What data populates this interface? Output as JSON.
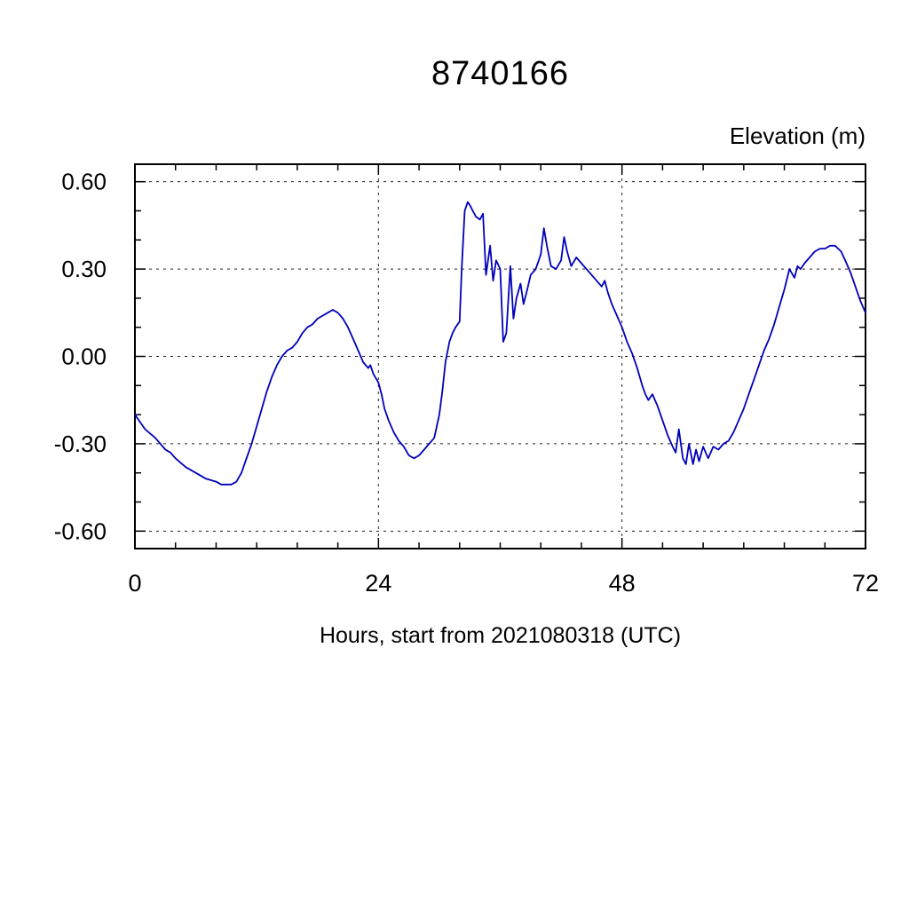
{
  "chart_data": {
    "type": "line",
    "title": "8740166",
    "xlabel": "Hours, start from 2021080318 (UTC)",
    "ylabel": "Elevation (m)",
    "xlim": [
      0,
      72
    ],
    "ylim": [
      -0.66,
      0.66
    ],
    "x_major_ticks": [
      0,
      24,
      48,
      72
    ],
    "x_tick_labels": [
      "0",
      "24",
      "48",
      "72"
    ],
    "x_minor_step": 4,
    "y_major_ticks": [
      -0.6,
      -0.3,
      0.0,
      0.3,
      0.6
    ],
    "y_tick_labels": [
      "-0.60",
      "-0.30",
      "0.00",
      "0.30",
      "0.60"
    ],
    "y_minor_step": 0.1,
    "grid": "dashed",
    "legend": "none",
    "line_color": "#0000bb",
    "series": [
      {
        "name": "elevation",
        "points": [
          [
            0,
            -0.2
          ],
          [
            1,
            -0.25
          ],
          [
            2,
            -0.28
          ],
          [
            3,
            -0.32
          ],
          [
            3.5,
            -0.33
          ],
          [
            4,
            -0.35
          ],
          [
            5,
            -0.38
          ],
          [
            6,
            -0.4
          ],
          [
            7,
            -0.42
          ],
          [
            8,
            -0.43
          ],
          [
            8.5,
            -0.44
          ],
          [
            9,
            -0.44
          ],
          [
            9.5,
            -0.44
          ],
          [
            10,
            -0.43
          ],
          [
            10.5,
            -0.4
          ],
          [
            11,
            -0.35
          ],
          [
            11.5,
            -0.3
          ],
          [
            12,
            -0.24
          ],
          [
            12.5,
            -0.18
          ],
          [
            13,
            -0.12
          ],
          [
            13.5,
            -0.07
          ],
          [
            14,
            -0.03
          ],
          [
            14.5,
            0.0
          ],
          [
            15,
            0.02
          ],
          [
            15.5,
            0.03
          ],
          [
            16,
            0.05
          ],
          [
            16.5,
            0.08
          ],
          [
            17,
            0.1
          ],
          [
            17.5,
            0.11
          ],
          [
            18,
            0.13
          ],
          [
            18.5,
            0.14
          ],
          [
            19,
            0.15
          ],
          [
            19.5,
            0.16
          ],
          [
            20,
            0.15
          ],
          [
            20.5,
            0.13
          ],
          [
            21,
            0.1
          ],
          [
            21.5,
            0.06
          ],
          [
            22,
            0.02
          ],
          [
            22.5,
            -0.02
          ],
          [
            23,
            -0.04
          ],
          [
            23.2,
            -0.03
          ],
          [
            23.5,
            -0.06
          ],
          [
            24,
            -0.09
          ],
          [
            24.3,
            -0.13
          ],
          [
            24.6,
            -0.18
          ],
          [
            25,
            -0.22
          ],
          [
            25.5,
            -0.26
          ],
          [
            26,
            -0.29
          ],
          [
            26.5,
            -0.31
          ],
          [
            27,
            -0.34
          ],
          [
            27.5,
            -0.35
          ],
          [
            28,
            -0.34
          ],
          [
            28.5,
            -0.32
          ],
          [
            29,
            -0.3
          ],
          [
            29.5,
            -0.28
          ],
          [
            30,
            -0.2
          ],
          [
            30.3,
            -0.12
          ],
          [
            30.6,
            -0.02
          ],
          [
            31,
            0.05
          ],
          [
            31.3,
            0.08
          ],
          [
            31.6,
            0.1
          ],
          [
            32,
            0.12
          ],
          [
            32.2,
            0.3
          ],
          [
            32.5,
            0.5
          ],
          [
            32.8,
            0.53
          ],
          [
            33,
            0.52
          ],
          [
            33.3,
            0.5
          ],
          [
            33.6,
            0.48
          ],
          [
            34,
            0.47
          ],
          [
            34.3,
            0.49
          ],
          [
            34.6,
            0.28
          ],
          [
            35,
            0.38
          ],
          [
            35.3,
            0.26
          ],
          [
            35.6,
            0.33
          ],
          [
            36,
            0.3
          ],
          [
            36.3,
            0.05
          ],
          [
            36.6,
            0.08
          ],
          [
            37,
            0.31
          ],
          [
            37.3,
            0.13
          ],
          [
            37.6,
            0.2
          ],
          [
            38,
            0.25
          ],
          [
            38.3,
            0.18
          ],
          [
            38.6,
            0.22
          ],
          [
            39,
            0.28
          ],
          [
            39.5,
            0.3
          ],
          [
            40,
            0.35
          ],
          [
            40.3,
            0.44
          ],
          [
            40.6,
            0.38
          ],
          [
            41,
            0.31
          ],
          [
            41.5,
            0.3
          ],
          [
            42,
            0.33
          ],
          [
            42.3,
            0.41
          ],
          [
            42.6,
            0.36
          ],
          [
            43,
            0.31
          ],
          [
            43.5,
            0.34
          ],
          [
            44,
            0.32
          ],
          [
            44.5,
            0.3
          ],
          [
            45,
            0.28
          ],
          [
            45.5,
            0.26
          ],
          [
            46,
            0.24
          ],
          [
            46.3,
            0.26
          ],
          [
            46.6,
            0.22
          ],
          [
            47,
            0.18
          ],
          [
            47.5,
            0.14
          ],
          [
            48,
            0.1
          ],
          [
            48.5,
            0.05
          ],
          [
            49,
            0.01
          ],
          [
            49.5,
            -0.04
          ],
          [
            50,
            -0.1
          ],
          [
            50.3,
            -0.13
          ],
          [
            50.6,
            -0.15
          ],
          [
            51,
            -0.13
          ],
          [
            51.5,
            -0.17
          ],
          [
            52,
            -0.22
          ],
          [
            52.5,
            -0.27
          ],
          [
            53,
            -0.31
          ],
          [
            53.3,
            -0.33
          ],
          [
            53.6,
            -0.25
          ],
          [
            54,
            -0.35
          ],
          [
            54.3,
            -0.37
          ],
          [
            54.6,
            -0.3
          ],
          [
            55,
            -0.37
          ],
          [
            55.3,
            -0.32
          ],
          [
            55.6,
            -0.36
          ],
          [
            56,
            -0.31
          ],
          [
            56.5,
            -0.35
          ],
          [
            57,
            -0.31
          ],
          [
            57.5,
            -0.32
          ],
          [
            58,
            -0.3
          ],
          [
            58.5,
            -0.29
          ],
          [
            59,
            -0.26
          ],
          [
            59.5,
            -0.22
          ],
          [
            60,
            -0.18
          ],
          [
            60.5,
            -0.13
          ],
          [
            61,
            -0.08
          ],
          [
            61.5,
            -0.03
          ],
          [
            62,
            0.02
          ],
          [
            62.5,
            0.06
          ],
          [
            63,
            0.11
          ],
          [
            63.5,
            0.17
          ],
          [
            64,
            0.23
          ],
          [
            64.5,
            0.3
          ],
          [
            65,
            0.27
          ],
          [
            65.3,
            0.31
          ],
          [
            65.6,
            0.3
          ],
          [
            66,
            0.32
          ],
          [
            66.5,
            0.34
          ],
          [
            67,
            0.36
          ],
          [
            67.5,
            0.37
          ],
          [
            68,
            0.37
          ],
          [
            68.5,
            0.38
          ],
          [
            69,
            0.38
          ],
          [
            69.3,
            0.37
          ],
          [
            69.6,
            0.36
          ],
          [
            70,
            0.33
          ],
          [
            70.5,
            0.29
          ],
          [
            71,
            0.24
          ],
          [
            71.5,
            0.19
          ],
          [
            72,
            0.15
          ]
        ]
      }
    ]
  }
}
